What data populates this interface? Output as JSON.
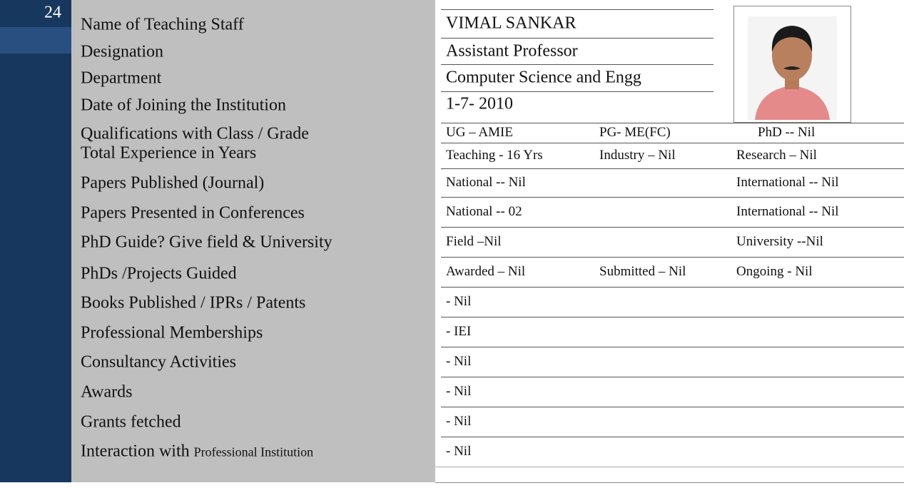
{
  "header": {
    "number": "24"
  },
  "rows": [
    {
      "label": "Name of Teaching Staff",
      "cells": [
        "VIMAL SANKAR"
      ]
    },
    {
      "label": "Designation",
      "cells": [
        "Assistant Professor"
      ]
    },
    {
      "label": "Department",
      "cells": [
        "Computer Science and Engg"
      ]
    },
    {
      "label": "Date of Joining the Institution",
      "cells": [
        "1-7- 2010"
      ]
    },
    {
      "label": "Qualifications with Class / Grade",
      "cells": [
        "UG – AMIE",
        "PG- ME(FC)",
        "PhD --  Nil"
      ]
    },
    {
      "label": "Total Experience in Years",
      "cells": [
        "Teaching - 16 Yrs",
        "Industry – Nil",
        "Research – Nil"
      ]
    },
    {
      "label": "Papers Published (Journal)",
      "cells": [
        "National  -- Nil",
        "International -- Nil"
      ]
    },
    {
      "label": "Papers Presented in Conferences",
      "cells": [
        "National -- 02",
        "International -- Nil"
      ]
    },
    {
      "label": "PhD Guide? Give field & University",
      "cells": [
        "Field –Nil",
        "University --Nil"
      ]
    },
    {
      "label": "PhDs /Projects Guided",
      "cells": [
        "Awarded – Nil",
        "Submitted – Nil",
        "Ongoing - Nil"
      ]
    },
    {
      "label": "Books Published / IPRs / Patents",
      "cells": [
        "- Nil"
      ]
    },
    {
      "label": "Professional Memberships",
      "cells": [
        "- IEI"
      ]
    },
    {
      "label": "Consultancy Activities",
      "cells": [
        "- Nil"
      ]
    },
    {
      "label": "Awards",
      "cells": [
        "- Nil"
      ]
    },
    {
      "label": "Grants fetched",
      "cells": [
        "- Nil"
      ]
    },
    {
      "label": "Interaction with",
      "label_small": "Professional Institution",
      "cells": [
        "- Nil"
      ]
    }
  ]
}
